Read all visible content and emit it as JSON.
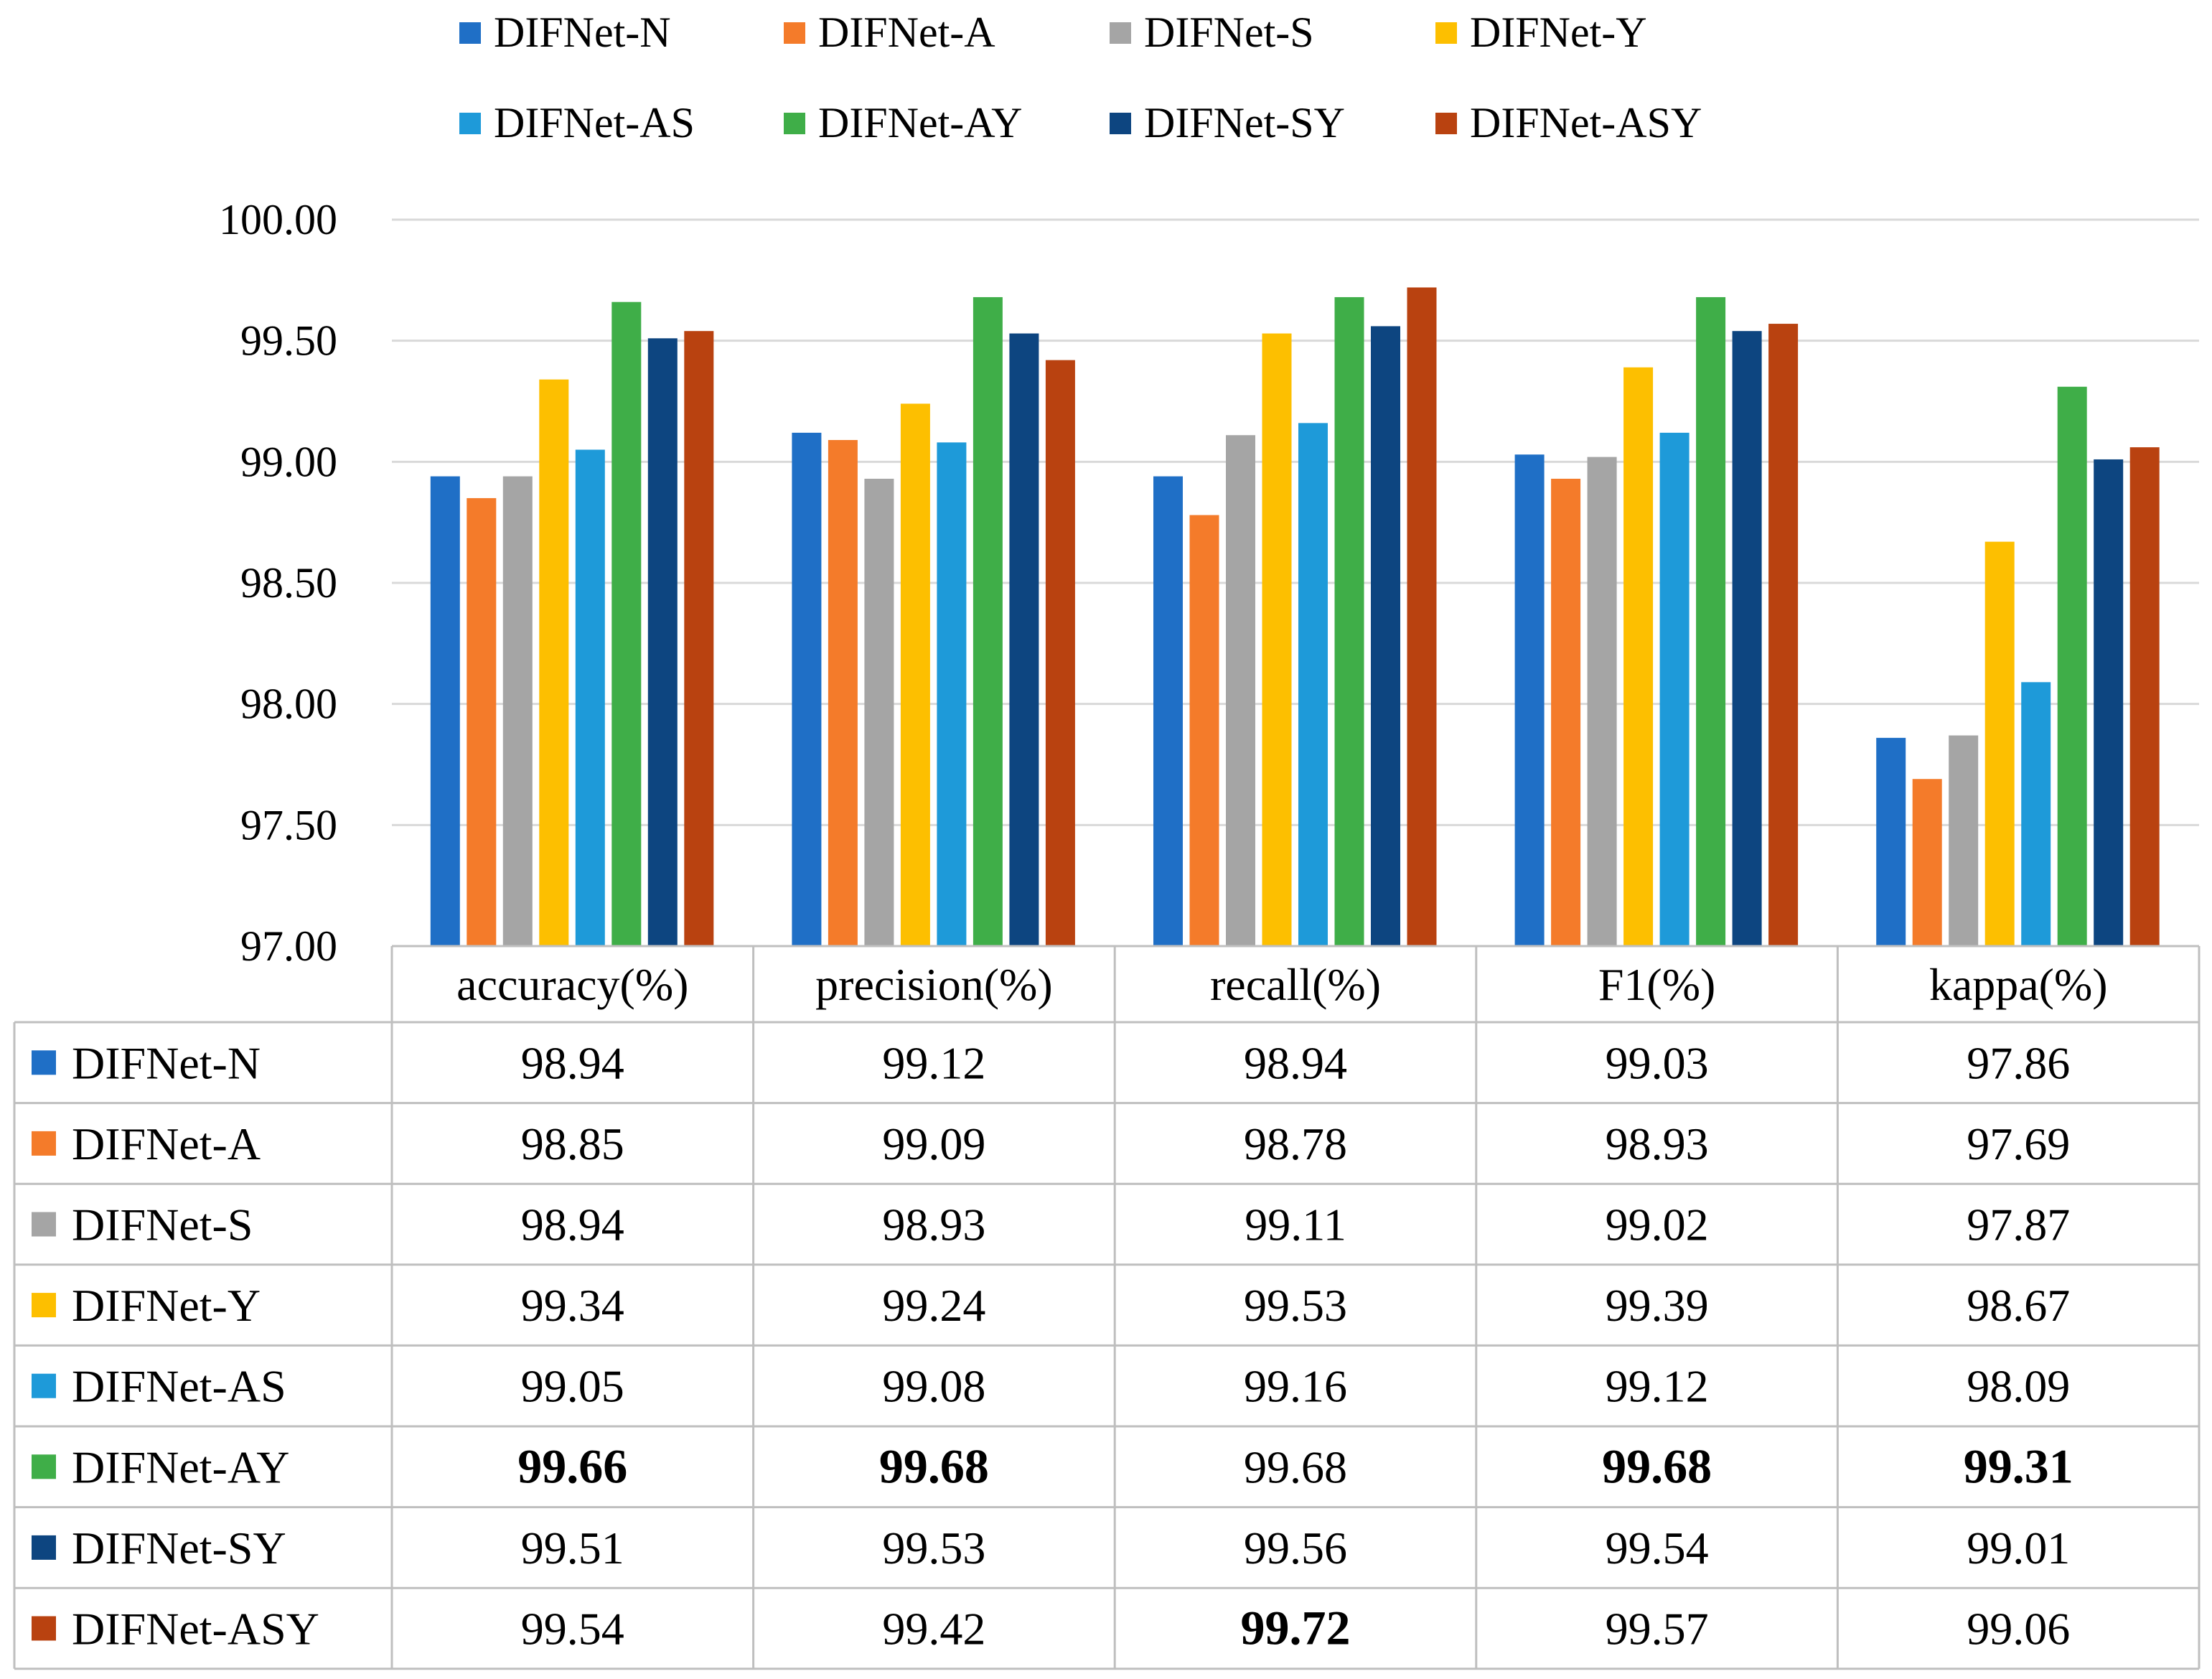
{
  "chart_data": {
    "type": "bar",
    "title": "",
    "xlabel": "",
    "ylabel": "",
    "ylim": [
      97.0,
      100.0
    ],
    "yticks": [
      "97.00",
      "97.50",
      "98.00",
      "98.50",
      "99.00",
      "99.50",
      "100.00"
    ],
    "grid": true,
    "legend_position": "top",
    "categories": [
      "accuracy(%)",
      "precision(%)",
      "recall(%)",
      "F1(%)",
      "kappa(%)"
    ],
    "series": [
      {
        "name": "DIFNet-N",
        "color": "#1f6fc6",
        "values": [
          98.94,
          99.12,
          98.94,
          99.03,
          97.86
        ],
        "labels": [
          "98.94",
          "99.12",
          "98.94",
          "99.03",
          "97.86"
        ],
        "bold": [
          false,
          false,
          false,
          false,
          false
        ]
      },
      {
        "name": "DIFNet-A",
        "color": "#f47b2a",
        "values": [
          98.85,
          99.09,
          98.78,
          98.93,
          97.69
        ],
        "labels": [
          "98.85",
          "99.09",
          "98.78",
          "98.93",
          "97.69"
        ],
        "bold": [
          false,
          false,
          false,
          false,
          false
        ]
      },
      {
        "name": "DIFNet-S",
        "color": "#a5a5a5",
        "values": [
          98.94,
          98.93,
          99.11,
          99.02,
          97.87
        ],
        "labels": [
          "98.94",
          "98.93",
          "99.11",
          "99.02",
          "97.87"
        ],
        "bold": [
          false,
          false,
          false,
          false,
          false
        ]
      },
      {
        "name": "DIFNet-Y",
        "color": "#fdbf00",
        "values": [
          99.34,
          99.24,
          99.53,
          99.39,
          98.67
        ],
        "labels": [
          "99.34",
          "99.24",
          "99.53",
          "99.39",
          "98.67"
        ],
        "bold": [
          false,
          false,
          false,
          false,
          false
        ]
      },
      {
        "name": "DIFNet-AS",
        "color": "#1e9ad9",
        "values": [
          99.05,
          99.08,
          99.16,
          99.12,
          98.09
        ],
        "labels": [
          "99.05",
          "99.08",
          "99.16",
          "99.12",
          "98.09"
        ],
        "bold": [
          false,
          false,
          false,
          false,
          false
        ]
      },
      {
        "name": "DIFNet-AY",
        "color": "#3fae48",
        "values": [
          99.66,
          99.68,
          99.68,
          99.68,
          99.31
        ],
        "labels": [
          "99.66",
          "99.68",
          "99.68",
          "99.68",
          "99.31"
        ],
        "bold": [
          true,
          true,
          false,
          true,
          true
        ]
      },
      {
        "name": "DIFNet-SY",
        "color": "#0d4580",
        "values": [
          99.51,
          99.53,
          99.56,
          99.54,
          99.01
        ],
        "labels": [
          "99.51",
          "99.53",
          "99.56",
          "99.54",
          "99.01"
        ],
        "bold": [
          false,
          false,
          false,
          false,
          false
        ]
      },
      {
        "name": "DIFNet-ASY",
        "color": "#b94210",
        "values": [
          99.54,
          99.42,
          99.72,
          99.57,
          99.06
        ],
        "labels": [
          "99.54",
          "99.42",
          "99.72",
          "99.57",
          "99.06"
        ],
        "bold": [
          false,
          false,
          true,
          false,
          false
        ]
      }
    ]
  }
}
